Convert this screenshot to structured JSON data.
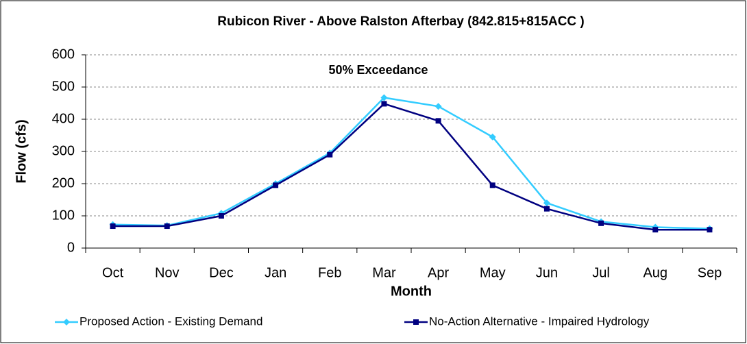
{
  "chart_data": {
    "type": "line",
    "title": "Rubicon River - Above Ralston Afterbay (842.815+815ACC )",
    "annotation": "50% Exceedance",
    "x_label": "Month",
    "y_label": "Flow (cfs)",
    "categories": [
      "Oct",
      "Nov",
      "Dec",
      "Jan",
      "Feb",
      "Mar",
      "Apr",
      "May",
      "Jun",
      "Jul",
      "Aug",
      "Sep"
    ],
    "series": [
      {
        "name": "Proposed Action - Existing Demand",
        "color": "#33ccff",
        "marker": "diamond",
        "values": [
          73,
          70,
          108,
          200,
          295,
          467,
          440,
          345,
          140,
          82,
          65,
          60
        ]
      },
      {
        "name": "No-Action Alternative - Impaired Hydrology",
        "color": "#000080",
        "marker": "square",
        "values": [
          68,
          68,
          100,
          195,
          290,
          448,
          395,
          195,
          122,
          77,
          57,
          57
        ]
      }
    ],
    "ylim": [
      0,
      600
    ],
    "yticks": [
      0,
      100,
      200,
      300,
      400,
      500,
      600
    ],
    "grid": true
  }
}
